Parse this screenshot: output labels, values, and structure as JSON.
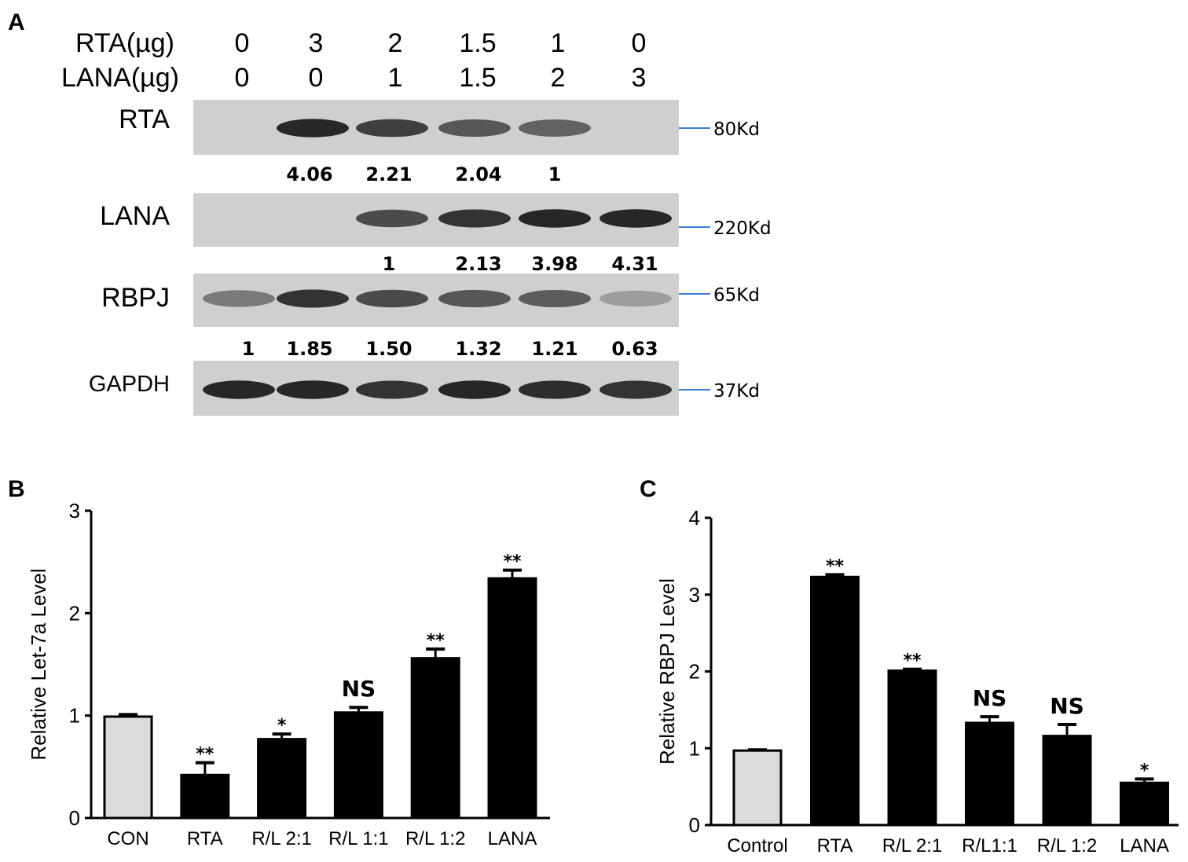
{
  "figure": {
    "panel_a": {
      "letter": "A",
      "row_labels": [
        "RTA(µg)",
        "LANA(µg)"
      ],
      "rta_doses": [
        "0",
        "3",
        "2",
        "1.5",
        "1",
        "0"
      ],
      "lana_doses": [
        "0",
        "0",
        "1",
        "1.5",
        "2",
        "3"
      ],
      "blots": [
        {
          "label": "RTA",
          "marker": "80Kd",
          "intensity": [
            0,
            0.9,
            0.8,
            0.7,
            0.65,
            0
          ],
          "quant": [
            "",
            "4.06",
            "2.21",
            "2.04",
            "1",
            ""
          ]
        },
        {
          "label": "LANA",
          "marker": "220Kd",
          "intensity": [
            0,
            0,
            0.75,
            0.85,
            0.9,
            0.9
          ],
          "quant": [
            "",
            "",
            "1",
            "2.13",
            "3.98",
            "4.31"
          ]
        },
        {
          "label": "RBPJ",
          "marker": "65Kd",
          "intensity": [
            0.55,
            0.85,
            0.75,
            0.7,
            0.68,
            0.4
          ],
          "quant": [
            "1",
            "1.85",
            "1.50",
            "1.32",
            "1.21",
            "0.63"
          ]
        },
        {
          "label": "GAPDH",
          "marker": "37Kd",
          "intensity": [
            0.9,
            0.9,
            0.85,
            0.9,
            0.88,
            0.85
          ],
          "quant": []
        }
      ]
    },
    "colors": {
      "control_bar": "#dcdcdc",
      "treatment_bar": "#000000",
      "marker_line": "#3a7fd4",
      "blot_bg": "#cfcfcf"
    }
  },
  "chart_data": [
    {
      "panel": "B",
      "type": "bar",
      "ylabel": "Relative Let-7a Level",
      "ylim": [
        0,
        3
      ],
      "yticks": [
        "0",
        "1",
        "2",
        "3"
      ],
      "categories": [
        "CON",
        "RTA",
        "R/L 2:1",
        "R/L 1:1",
        "R/L 1:2",
        "LANA"
      ],
      "values": [
        0.99,
        0.42,
        0.77,
        1.03,
        1.56,
        2.34
      ],
      "errors": [
        0.02,
        0.12,
        0.05,
        0.05,
        0.09,
        0.08
      ],
      "annotations": [
        "",
        "**",
        "*",
        "NS",
        "**",
        "**"
      ]
    },
    {
      "panel": "C",
      "type": "bar",
      "ylabel": "Relative RBPJ Level",
      "ylim": [
        0,
        4
      ],
      "yticks": [
        "0",
        "1",
        "2",
        "3",
        "4"
      ],
      "categories": [
        "Control",
        "RTA",
        "R/L 2:1",
        "R/L1:1",
        "R/L 1:2",
        "LANA"
      ],
      "values": [
        0.97,
        3.23,
        2.01,
        1.33,
        1.16,
        0.55
      ],
      "errors": [
        0.01,
        0.03,
        0.02,
        0.08,
        0.15,
        0.05
      ],
      "annotations": [
        "",
        "**",
        "**",
        "NS",
        "NS",
        "*"
      ]
    }
  ]
}
